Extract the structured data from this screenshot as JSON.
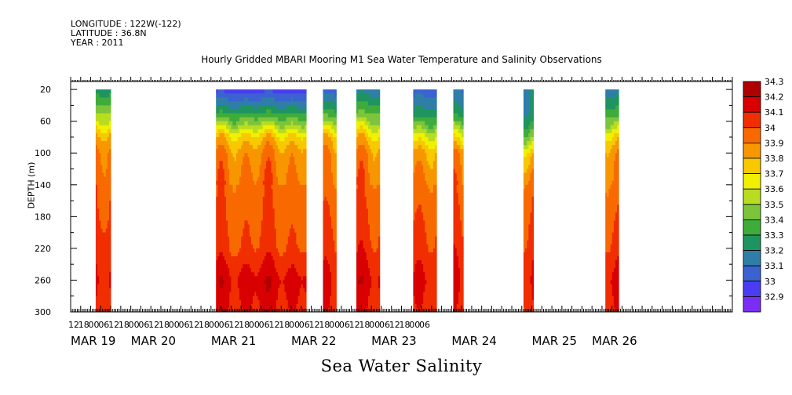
{
  "header": {
    "longitude": "LONGITUDE : 122W(-122)",
    "latitude": "LATITUDE : 36.8N",
    "year": "YEAR : 2011"
  },
  "chart_data": {
    "type": "heatmap",
    "title": "Hourly Gridded MBARI Mooring M1 Sea Water Temperature and Salinity Observations",
    "subtitle": "Sea Water Salinity",
    "ylabel": "DEPTH (m)",
    "xlabel": "",
    "x_unit": "hours",
    "xlim": [
      60,
      456
    ],
    "ylim": [
      300,
      10
    ],
    "y_ticks": [
      20,
      60,
      100,
      140,
      180,
      220,
      260,
      300
    ],
    "x_hour_ticks": [
      {
        "t": 60,
        "label": "12"
      },
      {
        "t": 66,
        "label": "18"
      },
      {
        "t": 72,
        "label": "00"
      },
      {
        "t": 78,
        "label": "06"
      },
      {
        "t": 84,
        "label": "12"
      },
      {
        "t": 90,
        "label": "18"
      },
      {
        "t": 96,
        "label": "00"
      },
      {
        "t": 102,
        "label": "06"
      },
      {
        "t": 108,
        "label": "12"
      },
      {
        "t": 114,
        "label": "18"
      },
      {
        "t": 120,
        "label": "00"
      },
      {
        "t": 126,
        "label": "06"
      },
      {
        "t": 132,
        "label": "12"
      },
      {
        "t": 138,
        "label": "18"
      },
      {
        "t": 144,
        "label": "00"
      },
      {
        "t": 150,
        "label": "06"
      },
      {
        "t": 156,
        "label": "12"
      },
      {
        "t": 162,
        "label": "18"
      },
      {
        "t": 168,
        "label": "00"
      },
      {
        "t": 174,
        "label": "06"
      },
      {
        "t": 180,
        "label": "12"
      },
      {
        "t": 186,
        "label": "18"
      },
      {
        "t": 192,
        "label": "00"
      },
      {
        "t": 198,
        "label": "06"
      },
      {
        "t": 204,
        "label": "12"
      },
      {
        "t": 210,
        "label": "18"
      },
      {
        "t": 216,
        "label": "00"
      },
      {
        "t": 222,
        "label": "06"
      },
      {
        "t": 228,
        "label": "12"
      },
      {
        "t": 234,
        "label": "18"
      },
      {
        "t": 240,
        "label": "00"
      },
      {
        "t": 246,
        "label": "06"
      },
      {
        "t": 252,
        "label": "12"
      },
      {
        "t": 258,
        "label": "18"
      },
      {
        "t": 264,
        "label": "00"
      },
      {
        "t": 270,
        "label": "06"
      }
    ],
    "x_day_labels": [
      {
        "t": 60,
        "label": "MAR 19"
      },
      {
        "t": 96,
        "label": "MAR 20"
      },
      {
        "t": 144,
        "label": "MAR 21"
      },
      {
        "t": 192,
        "label": "MAR 22"
      },
      {
        "t": 240,
        "label": "MAR 23"
      },
      {
        "t": 288,
        "label": "MAR 24"
      },
      {
        "t": 336,
        "label": "MAR 25"
      },
      {
        "t": 372,
        "label": "MAR 26"
      }
    ],
    "colorbar": {
      "levels": [
        32.9,
        33,
        33.1,
        33.2,
        33.3,
        33.4,
        33.5,
        33.6,
        33.7,
        33.8,
        33.9,
        34,
        34.1,
        34.2,
        34.3
      ],
      "labels": [
        "32.9",
        "33",
        "33.1",
        "33.2",
        "33.3",
        "33.4",
        "33.5",
        "33.6",
        "33.7",
        "33.8",
        "33.9",
        "34",
        "34.1",
        "34.2",
        "34.3"
      ],
      "colors": [
        "#c81ef0",
        "#7a2ef5",
        "#4a3cf2",
        "#3a62d0",
        "#2e7ea8",
        "#1f9460",
        "#3eac3a",
        "#7cc43a",
        "#b8dc20",
        "#f0f000",
        "#f8c800",
        "#f89600",
        "#f86a00",
        "#f02e00",
        "#d80000",
        "#b00000"
      ]
    },
    "segments": [
      {
        "t0": 75,
        "t1": 84,
        "surface": 33.35,
        "profile": [
          33.35,
          33.6,
          33.95,
          34.05,
          34.1,
          34.12,
          34.18,
          34.22,
          34.18
        ]
      },
      {
        "t0": 147,
        "t1": 201,
        "surface": 33.05,
        "profile": [
          33.05,
          33.4,
          33.85,
          33.98,
          34.05,
          34.08,
          34.12,
          34.25,
          34.2
        ]
      },
      {
        "t0": 211,
        "t1": 219,
        "surface": 33.15,
        "profile": [
          33.15,
          33.45,
          33.9,
          34.0,
          34.05,
          34.1,
          34.15,
          34.22,
          34.18
        ]
      },
      {
        "t0": 231,
        "t1": 245,
        "surface": 33.25,
        "profile": [
          33.25,
          33.5,
          33.85,
          33.98,
          34.05,
          34.1,
          34.15,
          34.25,
          34.18
        ]
      },
      {
        "t0": 265,
        "t1": 279,
        "surface": 33.15,
        "profile": [
          33.15,
          33.35,
          33.75,
          33.95,
          34.05,
          34.1,
          34.15,
          34.23,
          34.18
        ]
      },
      {
        "t0": 289,
        "t1": 295,
        "surface": 33.2,
        "profile": [
          33.2,
          33.35,
          33.75,
          33.98,
          34.05,
          34.1,
          34.15,
          34.2,
          34.15
        ]
      },
      {
        "t0": 331,
        "t1": 337,
        "surface": 33.3,
        "profile": [
          33.3,
          33.3,
          33.55,
          33.85,
          34.05,
          34.1,
          34.15,
          34.2,
          34.15
        ]
      },
      {
        "t0": 380,
        "t1": 388,
        "surface": 33.25,
        "profile": [
          33.25,
          33.45,
          33.85,
          34.0,
          34.05,
          34.1,
          34.15,
          34.25,
          34.2
        ]
      }
    ]
  }
}
